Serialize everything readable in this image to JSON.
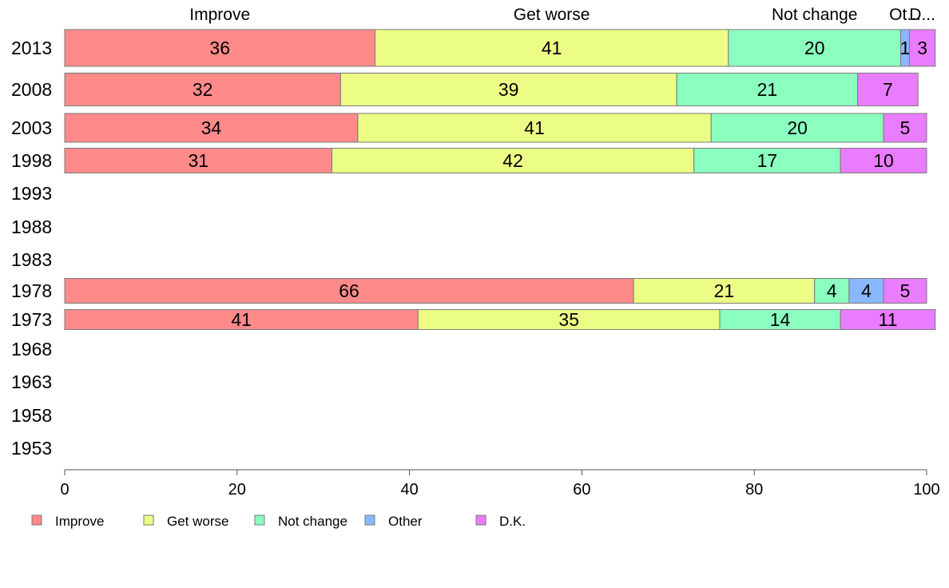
{
  "chart_data": {
    "type": "bar",
    "orientation": "horizontal",
    "stacked": true,
    "categories": [
      "2013",
      "2008",
      "2003",
      "1998",
      "1993",
      "1988",
      "1983",
      "1978",
      "1973",
      "1968",
      "1963",
      "1958",
      "1953"
    ],
    "series": [
      {
        "name": "Improve",
        "color": "#ff8a8a",
        "values": [
          36,
          32,
          34,
          31,
          null,
          null,
          null,
          66,
          41,
          null,
          null,
          null,
          null
        ]
      },
      {
        "name": "Get worse",
        "color": "#ecfd86",
        "values": [
          41,
          39,
          41,
          42,
          null,
          null,
          null,
          21,
          35,
          null,
          null,
          null,
          null
        ]
      },
      {
        "name": "Not change",
        "color": "#8affbf",
        "values": [
          20,
          21,
          20,
          17,
          null,
          null,
          null,
          4,
          14,
          null,
          null,
          null,
          null
        ]
      },
      {
        "name": "Other",
        "color": "#8ab8ff",
        "values": [
          1,
          0,
          0,
          0,
          null,
          null,
          null,
          4,
          0,
          null,
          null,
          null,
          null
        ]
      },
      {
        "name": "D.K.",
        "color": "#ea7cff",
        "values": [
          3,
          7,
          5,
          10,
          null,
          null,
          null,
          5,
          11,
          null,
          null,
          null,
          null
        ]
      }
    ],
    "top_labels": [
      "Improve",
      "Get worse",
      "Not change",
      "Ot...",
      "D..."
    ],
    "xlim": [
      0,
      100
    ],
    "xticks": [
      0,
      20,
      40,
      60,
      80,
      100
    ],
    "grid": false,
    "legend_position": "bottom-left"
  }
}
